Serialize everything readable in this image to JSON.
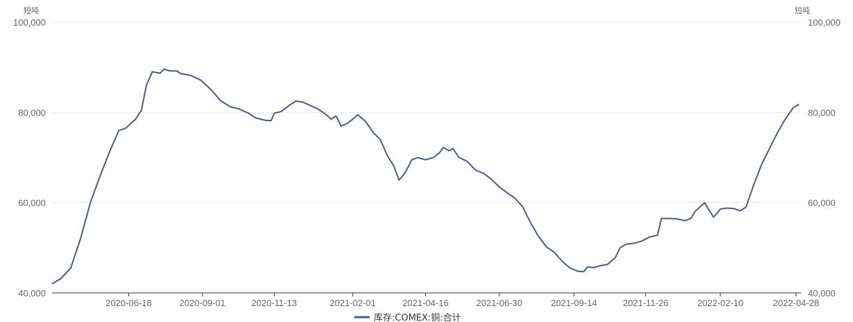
{
  "chart_data": {
    "type": "line",
    "title": "",
    "unit_left": "短吨",
    "unit_right": "短吨",
    "ylim": [
      40000,
      100000
    ],
    "yticks": [
      "40,000",
      "60,000",
      "80,000",
      "100,000"
    ],
    "ytick_values": [
      40000,
      60000,
      80000,
      100000
    ],
    "xlim": [
      "2020-04-01",
      "2022-05-03"
    ],
    "xticks": [
      "2020-06-18",
      "2020-09-01",
      "2020-11-13",
      "2021-02-01",
      "2021-04-16",
      "2021-06-30",
      "2021-09-14",
      "2021-11-26",
      "2022-02-10",
      "2022-04-28"
    ],
    "grid": true,
    "legend_position": "bottom-center",
    "series": [
      {
        "name": "库存:COMEX:铜:合计",
        "color": "#4a5894",
        "points": [
          [
            "2020-04-01",
            42000
          ],
          [
            "2020-04-10",
            43200
          ],
          [
            "2020-04-20",
            45500
          ],
          [
            "2020-04-30",
            52000
          ],
          [
            "2020-05-10",
            60000
          ],
          [
            "2020-05-20",
            66000
          ],
          [
            "2020-05-30",
            71500
          ],
          [
            "2020-06-08",
            76000
          ],
          [
            "2020-06-15",
            76500
          ],
          [
            "2020-06-25",
            78500
          ],
          [
            "2020-07-01",
            80500
          ],
          [
            "2020-07-06",
            86000
          ],
          [
            "2020-07-12",
            89000
          ],
          [
            "2020-07-20",
            88700
          ],
          [
            "2020-07-24",
            89600
          ],
          [
            "2020-07-30",
            89200
          ],
          [
            "2020-08-06",
            89200
          ],
          [
            "2020-08-10",
            88600
          ],
          [
            "2020-08-20",
            88200
          ],
          [
            "2020-08-30",
            87200
          ],
          [
            "2020-09-10",
            85000
          ],
          [
            "2020-09-20",
            82500
          ],
          [
            "2020-09-30",
            81200
          ],
          [
            "2020-10-08",
            80800
          ],
          [
            "2020-10-18",
            79800
          ],
          [
            "2020-10-25",
            78800
          ],
          [
            "2020-11-05",
            78200
          ],
          [
            "2020-11-10",
            78200
          ],
          [
            "2020-11-13",
            79800
          ],
          [
            "2020-11-20",
            80200
          ],
          [
            "2020-11-28",
            81500
          ],
          [
            "2020-12-05",
            82500
          ],
          [
            "2020-12-12",
            82300
          ],
          [
            "2020-12-20",
            81500
          ],
          [
            "2020-12-28",
            80700
          ],
          [
            "2021-01-05",
            79500
          ],
          [
            "2021-01-10",
            78500
          ],
          [
            "2021-01-15",
            79200
          ],
          [
            "2021-01-20",
            77000
          ],
          [
            "2021-01-26",
            77500
          ],
          [
            "2021-02-01",
            78500
          ],
          [
            "2021-02-06",
            79500
          ],
          [
            "2021-02-14",
            78000
          ],
          [
            "2021-02-22",
            75500
          ],
          [
            "2021-03-01",
            74000
          ],
          [
            "2021-03-08",
            70500
          ],
          [
            "2021-03-15",
            68000
          ],
          [
            "2021-03-20",
            65000
          ],
          [
            "2021-03-26",
            66500
          ],
          [
            "2021-04-02",
            69500
          ],
          [
            "2021-04-08",
            70000
          ],
          [
            "2021-04-16",
            69500
          ],
          [
            "2021-04-24",
            70000
          ],
          [
            "2021-04-30",
            71000
          ],
          [
            "2021-05-04",
            72200
          ],
          [
            "2021-05-10",
            71500
          ],
          [
            "2021-05-14",
            72000
          ],
          [
            "2021-05-20",
            70000
          ],
          [
            "2021-05-28",
            69200
          ],
          [
            "2021-06-06",
            67200
          ],
          [
            "2021-06-14",
            66500
          ],
          [
            "2021-06-22",
            65200
          ],
          [
            "2021-06-30",
            63500
          ],
          [
            "2021-07-08",
            62200
          ],
          [
            "2021-07-16",
            61000
          ],
          [
            "2021-07-24",
            59000
          ],
          [
            "2021-08-01",
            55500
          ],
          [
            "2021-08-09",
            52500
          ],
          [
            "2021-08-17",
            50200
          ],
          [
            "2021-08-25",
            49000
          ],
          [
            "2021-09-02",
            47000
          ],
          [
            "2021-09-10",
            45500
          ],
          [
            "2021-09-18",
            44800
          ],
          [
            "2021-09-24",
            44700
          ],
          [
            "2021-09-28",
            45800
          ],
          [
            "2021-10-04",
            45600
          ],
          [
            "2021-10-10",
            46000
          ],
          [
            "2021-10-18",
            46300
          ],
          [
            "2021-10-26",
            47800
          ],
          [
            "2021-10-31",
            50000
          ],
          [
            "2021-11-06",
            50800
          ],
          [
            "2021-11-14",
            51000
          ],
          [
            "2021-11-22",
            51500
          ],
          [
            "2021-11-30",
            52400
          ],
          [
            "2021-12-08",
            52800
          ],
          [
            "2021-12-12",
            56500
          ],
          [
            "2021-12-20",
            56500
          ],
          [
            "2021-12-28",
            56400
          ],
          [
            "2022-01-05",
            56000
          ],
          [
            "2022-01-11",
            56500
          ],
          [
            "2022-01-15",
            58000
          ],
          [
            "2022-01-21",
            59200
          ],
          [
            "2022-01-25",
            60000
          ],
          [
            "2022-01-29",
            58500
          ],
          [
            "2022-02-03",
            56800
          ],
          [
            "2022-02-06",
            57500
          ],
          [
            "2022-02-10",
            58600
          ],
          [
            "2022-02-16",
            58800
          ],
          [
            "2022-02-24",
            58700
          ],
          [
            "2022-03-02",
            58200
          ],
          [
            "2022-03-08",
            59000
          ],
          [
            "2022-03-16",
            64000
          ],
          [
            "2022-03-24",
            68500
          ],
          [
            "2022-04-01",
            72000
          ],
          [
            "2022-04-09",
            75500
          ],
          [
            "2022-04-17",
            78500
          ],
          [
            "2022-04-25",
            81000
          ],
          [
            "2022-05-01",
            81800
          ]
        ]
      }
    ]
  }
}
